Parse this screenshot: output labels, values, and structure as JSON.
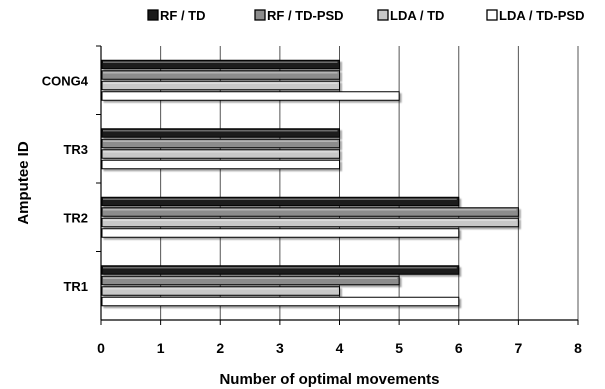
{
  "chart_data": {
    "type": "bar",
    "orientation": "horizontal",
    "categories": [
      "CONG4",
      "TR3",
      "TR2",
      "TR1"
    ],
    "series": [
      {
        "name": "RF / TD",
        "color": "#1a1a1a",
        "values": [
          4,
          4,
          6,
          6
        ]
      },
      {
        "name": "RF / TD-PSD",
        "color": "#8c8c8c",
        "values": [
          4,
          4,
          7,
          5
        ]
      },
      {
        "name": "LDA / TD",
        "color": "#c8c8c8",
        "values": [
          4,
          4,
          7,
          4
        ]
      },
      {
        "name": "LDA / TD-PSD",
        "color": "#ffffff",
        "values": [
          5,
          4,
          6,
          6
        ]
      }
    ],
    "xlabel": "Number of optimal movements",
    "ylabel": "Amputee ID",
    "xlim": [
      0,
      8
    ],
    "xticks": [
      "0",
      "1",
      "2",
      "3",
      "4",
      "5",
      "6",
      "7",
      "8"
    ],
    "grid": "vertical",
    "legend": "top"
  }
}
